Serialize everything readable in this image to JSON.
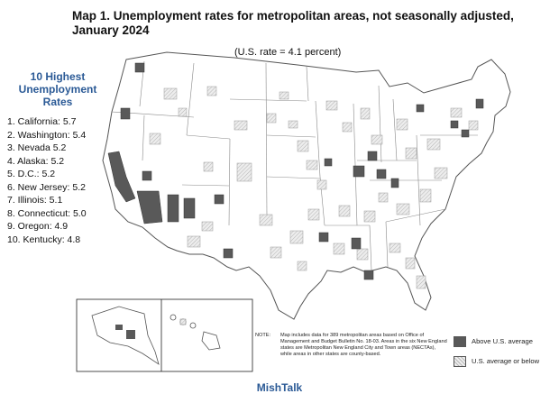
{
  "title": "Map 1. Unemployment rates for metropolitan areas, not seasonally adjusted, January 2024",
  "subtitle": "(U.S. rate = 4.1 percent)",
  "ranking": {
    "heading": "10 Highest Unemployment Rates",
    "items": [
      {
        "label": "1.  California: 5.7"
      },
      {
        "label": "2.  Washington: 5.4"
      },
      {
        "label": "3.  Nevada 5.2"
      },
      {
        "label": "4.  Alaska: 5.2"
      },
      {
        "label": "5.  D.C.: 5.2"
      },
      {
        "label": "6.  New Jersey: 5.2"
      },
      {
        "label": "7.  Illinois: 5.1"
      },
      {
        "label": "8.  Connecticut: 5.0"
      },
      {
        "label": "9.  Oregon: 4.9"
      },
      {
        "label": "10. Kentucky: 4.8"
      }
    ]
  },
  "note": {
    "label": "NOTE:",
    "text": "Map includes data for 389 metropolitan areas based on Office of Management and Budget Bulletin No. 18-03. Areas in the six New England states are Metropolitan New England City and Town areas (NECTAs), while areas in other states are county-based."
  },
  "legend": {
    "above": "Above U.S. average",
    "below": "U.S. average or below"
  },
  "colors": {
    "above": "#595959",
    "below": "#e6e6e6",
    "heading_blue": "#2b5a96"
  },
  "watermark": "MishTalk"
}
